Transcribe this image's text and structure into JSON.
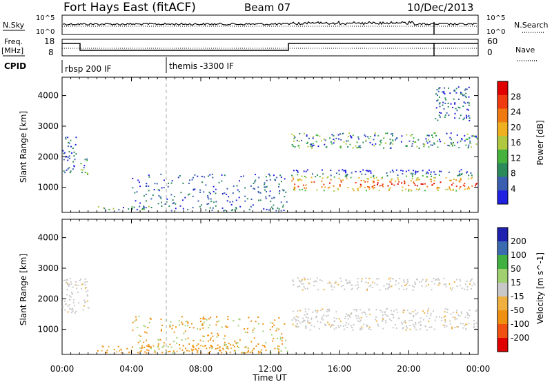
{
  "header": {
    "title": "Fort Hays East (fitACF)",
    "beam": "Beam 07",
    "date": "10/Dec/2013"
  },
  "sky_panel": {
    "left_label": "N.Sky",
    "left_ticks": [
      "10^5",
      "10^0"
    ],
    "right_label": "N.Search",
    "right_ticks": [
      "10^5",
      "10^0"
    ]
  },
  "freq_panel": {
    "left_label_1": "Freq.",
    "left_label_2": "[MHz]",
    "left_ticks": [
      "18",
      "8"
    ],
    "right_label": "Nave",
    "right_ticks": [
      "60",
      "0"
    ]
  },
  "cpid_panel": {
    "label": "CPID",
    "modes": [
      {
        "label": "rbsp 200 IF",
        "start_hour": 0
      },
      {
        "label": "themis -3300 IF",
        "start_hour": 6
      }
    ]
  },
  "colors": {
    "power_scale": [
      "#2020e0",
      "#3a5fb0",
      "#2a8a5a",
      "#44b23c",
      "#b0c840",
      "#f0b020",
      "#f07a10",
      "#f03a10",
      "#e00000"
    ],
    "velocity_scale": [
      "#e00000",
      "#f05010",
      "#f09010",
      "#f0b040",
      "#c8c8c8",
      "#a0d070",
      "#40b040",
      "#3a6ab0",
      "#2020b0"
    ]
  },
  "chart_data": [
    {
      "type": "heatmap",
      "title": "Power",
      "ylabel": "Slant Range [km]",
      "xlabel": "Time UT",
      "x_ticks": [
        "00:00",
        "04:00",
        "08:00",
        "12:00",
        "16:00",
        "20:00",
        "00:00"
      ],
      "xlim_hours": [
        0,
        24
      ],
      "ylim": [
        180,
        4600
      ],
      "y_ticks": [
        1000,
        2000,
        3000,
        4000
      ],
      "colorbar": {
        "label": "Power [dB]",
        "ticks": [
          4,
          8,
          12,
          16,
          20,
          24,
          28
        ],
        "range": [
          0,
          32
        ]
      },
      "regions": [
        {
          "t0": 0.0,
          "t1": 0.8,
          "r0": 1500,
          "r1": 2700,
          "level": "low-mid"
        },
        {
          "t0": 1.0,
          "t1": 1.5,
          "r0": 1400,
          "r1": 2000,
          "level": "mid"
        },
        {
          "t0": 2.0,
          "t1": 5.0,
          "r0": 250,
          "r1": 400,
          "level": "mid"
        },
        {
          "t0": 13.2,
          "t1": 24.0,
          "r0": 900,
          "r1": 1600,
          "level": "high"
        },
        {
          "t0": 13.2,
          "t1": 24.0,
          "r0": 2300,
          "r1": 2800,
          "level": "mid"
        },
        {
          "t0": 21.5,
          "t1": 23.5,
          "r0": 3200,
          "r1": 4300,
          "level": "low"
        }
      ]
    },
    {
      "type": "heatmap",
      "title": "Velocity",
      "ylabel": "Slant Range [km]",
      "xlabel": "Time UT",
      "x_ticks": [
        "00:00",
        "04:00",
        "08:00",
        "12:00",
        "16:00",
        "20:00",
        "00:00"
      ],
      "xlim_hours": [
        0,
        24
      ],
      "ylim": [
        180,
        4600
      ],
      "y_ticks": [
        1000,
        2000,
        3000,
        4000
      ],
      "colorbar": {
        "label": "Velocity [m s^-1]",
        "ticks": [
          200,
          100,
          50,
          15,
          -15,
          -50,
          -100,
          -200
        ],
        "range": [
          -250,
          250
        ]
      },
      "regions": [
        {
          "t0": 0.0,
          "t1": 1.5,
          "r0": 1500,
          "r1": 2700,
          "level": "ground"
        },
        {
          "t0": 2.0,
          "t1": 12.5,
          "r0": 250,
          "r1": 500,
          "level": "away"
        },
        {
          "t0": 13.2,
          "t1": 24.0,
          "r0": 1000,
          "r1": 1700,
          "level": "ground"
        },
        {
          "t0": 13.2,
          "t1": 24.0,
          "r0": 2300,
          "r1": 2700,
          "level": "ground"
        }
      ]
    }
  ]
}
